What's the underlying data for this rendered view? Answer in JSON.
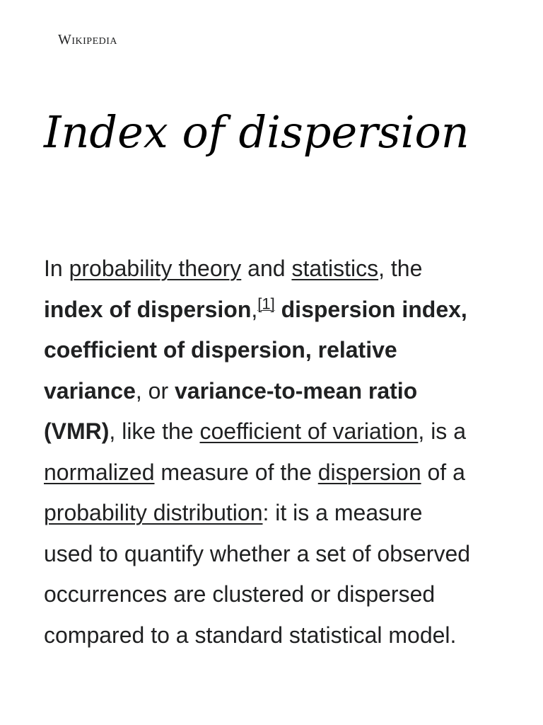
{
  "header": {
    "wordmark": "Wikipedia"
  },
  "article": {
    "title": "Index of dispersion",
    "lead": {
      "l1_t1": "In ",
      "l1_link1": "probability theory",
      "l1_t2": " and ",
      "l1_link2": "statistics",
      "l1_t3": ", the",
      "l2_b1": "index of dispersion",
      "l2_t1": ",",
      "l2_ref": "[1]",
      "l2_t2": " ",
      "l2_b2": "dispersion index,",
      "l3_b1": "coefficient of dispersion, relative",
      "l4_b1": "variance",
      "l4_t1": ", or ",
      "l4_b2": "variance-to-mean ratio",
      "l5_b1": "(VMR)",
      "l5_t1": ", like the ",
      "l5_link1": "coefficient of variation",
      "l5_t2": ", is a",
      "l6_link1": "normalized",
      "l6_t1": " measure of the ",
      "l6_link2": "dispersion",
      "l6_t2": " of a",
      "l7_link1": "probability distribution",
      "l7_t1": ": it is a measure",
      "l8_t1": "used to quantify whether a set of observed",
      "l9_t1": "occurrences are clustered or dispersed",
      "l10_t1": "compared to a standard statistical model."
    }
  }
}
